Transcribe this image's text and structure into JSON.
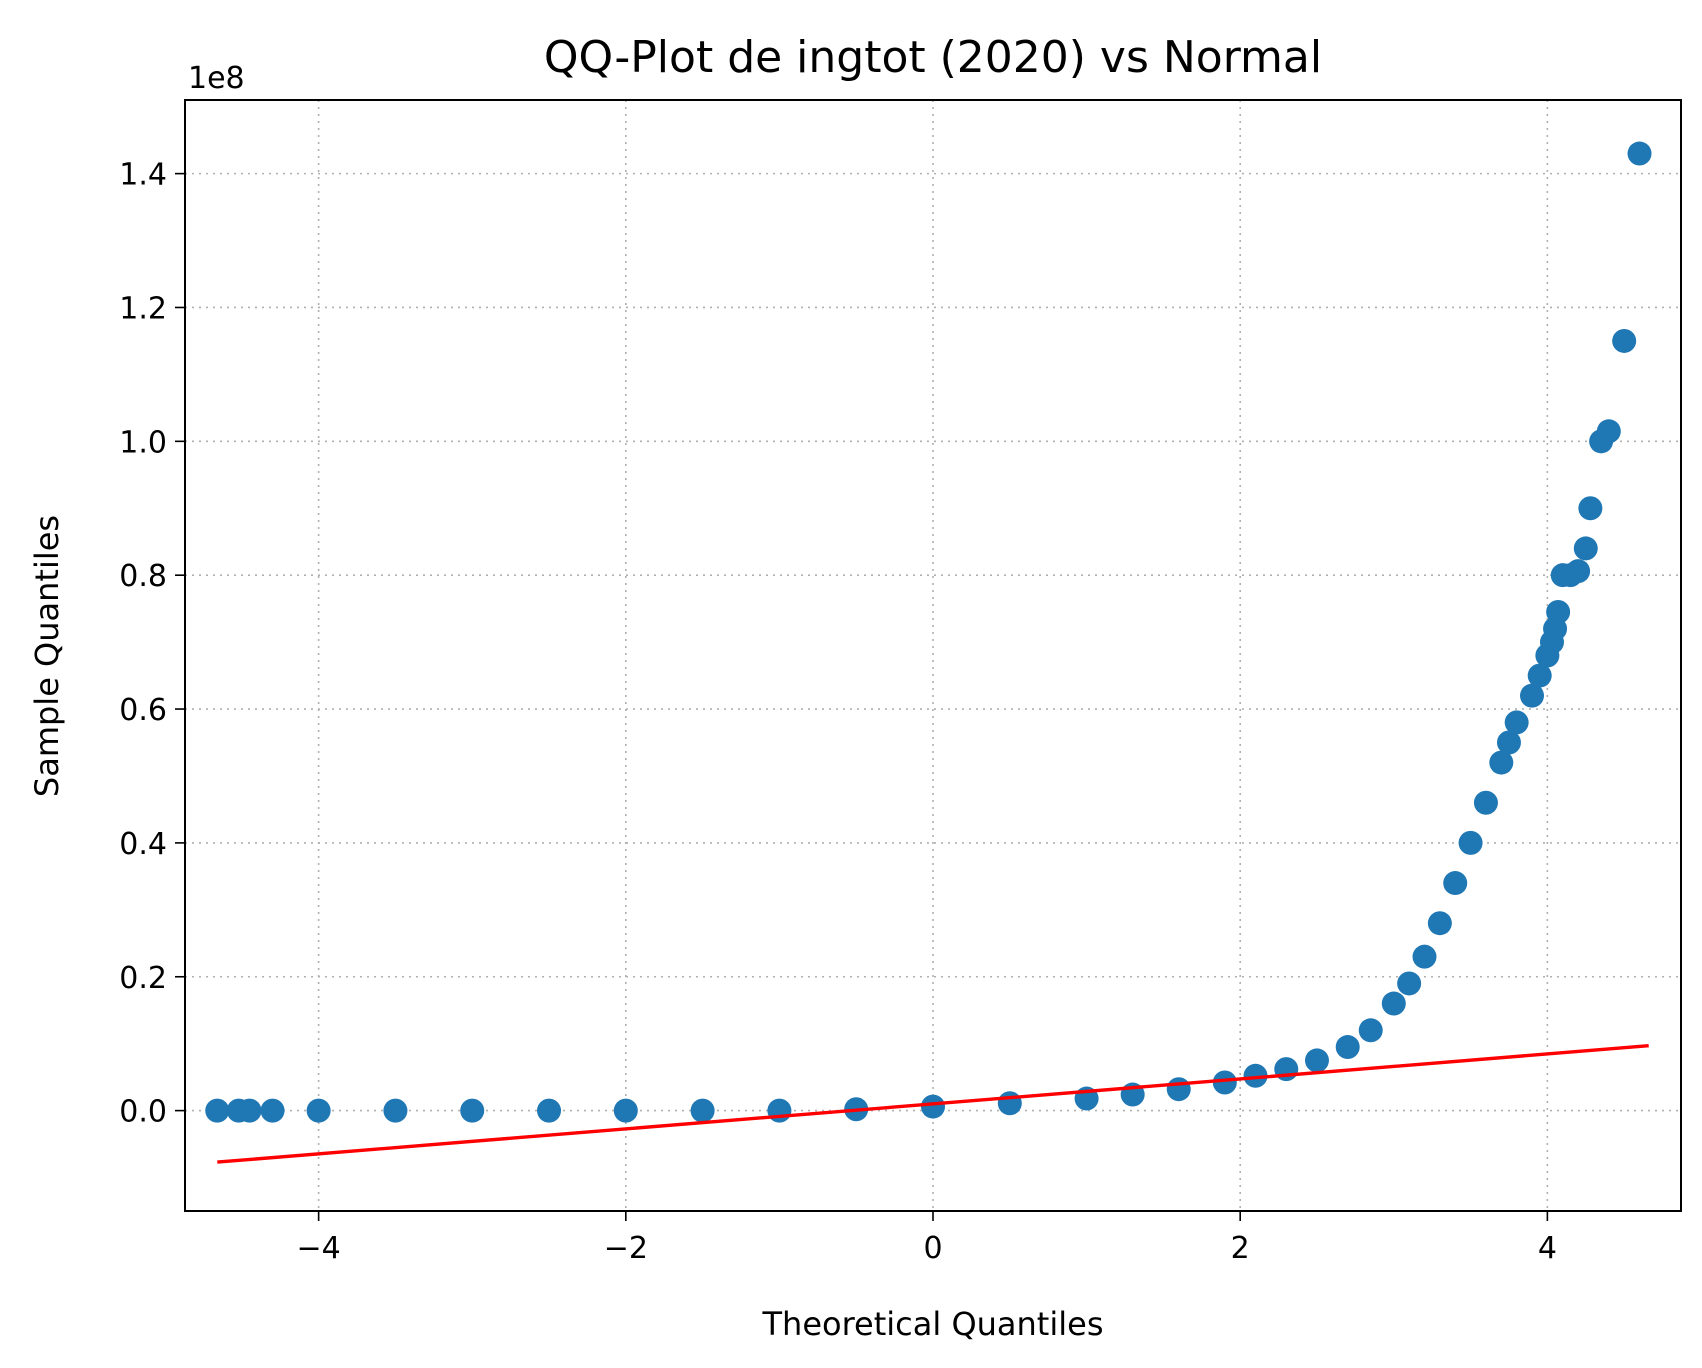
{
  "chart_data": {
    "type": "scatter",
    "title": "QQ-Plot de ingtot (2020) vs Normal",
    "xlabel": "Theoretical Quantiles",
    "ylabel": "Sample Quantiles",
    "y_offset_label": "1e8",
    "xlim": [
      -4.87,
      4.87
    ],
    "ylim": [
      -0.15,
      1.51
    ],
    "xticks": [
      -4,
      -2,
      0,
      2,
      4
    ],
    "xtick_labels": [
      "−4",
      "−2",
      "0",
      "2",
      "4"
    ],
    "yticks": [
      0.0,
      0.2,
      0.4,
      0.6,
      0.8,
      1.0,
      1.2,
      1.4
    ],
    "ytick_labels": [
      "0.0",
      "0.2",
      "0.4",
      "0.6",
      "0.8",
      "1.0",
      "1.2",
      "1.4"
    ],
    "grid": true,
    "colors": {
      "points": "#1f77b4",
      "reference_line": "#ff0000",
      "grid": "#b0b0b0"
    },
    "series": [
      {
        "kind": "points",
        "x": [
          -4.66,
          -4.52,
          -4.45,
          -4.3,
          -4.0,
          -3.5,
          -3.0,
          -2.5,
          -2.0,
          -1.5,
          -1.0,
          -0.5,
          0.0,
          0.5,
          1.0,
          1.3,
          1.6,
          1.9,
          2.1,
          2.3,
          2.5,
          2.7,
          2.85,
          3.0,
          3.1,
          3.2,
          3.3,
          3.4,
          3.5,
          3.6,
          3.7,
          3.75,
          3.8,
          3.9,
          3.95,
          4.0,
          4.03,
          4.05,
          4.07,
          4.1,
          4.15,
          4.2,
          4.25,
          4.28,
          4.35,
          4.4,
          4.5,
          4.6
        ],
        "y": [
          0.0,
          0.0,
          0.0,
          0.0,
          0.0,
          0.0,
          0.0,
          0.0,
          0.0,
          0.0,
          0.0,
          0.002,
          0.006,
          0.011,
          0.018,
          0.024,
          0.032,
          0.042,
          0.052,
          0.062,
          0.075,
          0.095,
          0.12,
          0.16,
          0.19,
          0.23,
          0.28,
          0.34,
          0.4,
          0.46,
          0.52,
          0.55,
          0.58,
          0.62,
          0.65,
          0.68,
          0.7,
          0.72,
          0.745,
          0.8,
          0.8,
          0.806,
          0.84,
          0.9,
          1.0,
          1.015,
          1.15,
          1.43
        ]
      },
      {
        "kind": "line",
        "x": [
          -4.66,
          4.66
        ],
        "y": [
          -0.077,
          0.097
        ]
      }
    ]
  }
}
